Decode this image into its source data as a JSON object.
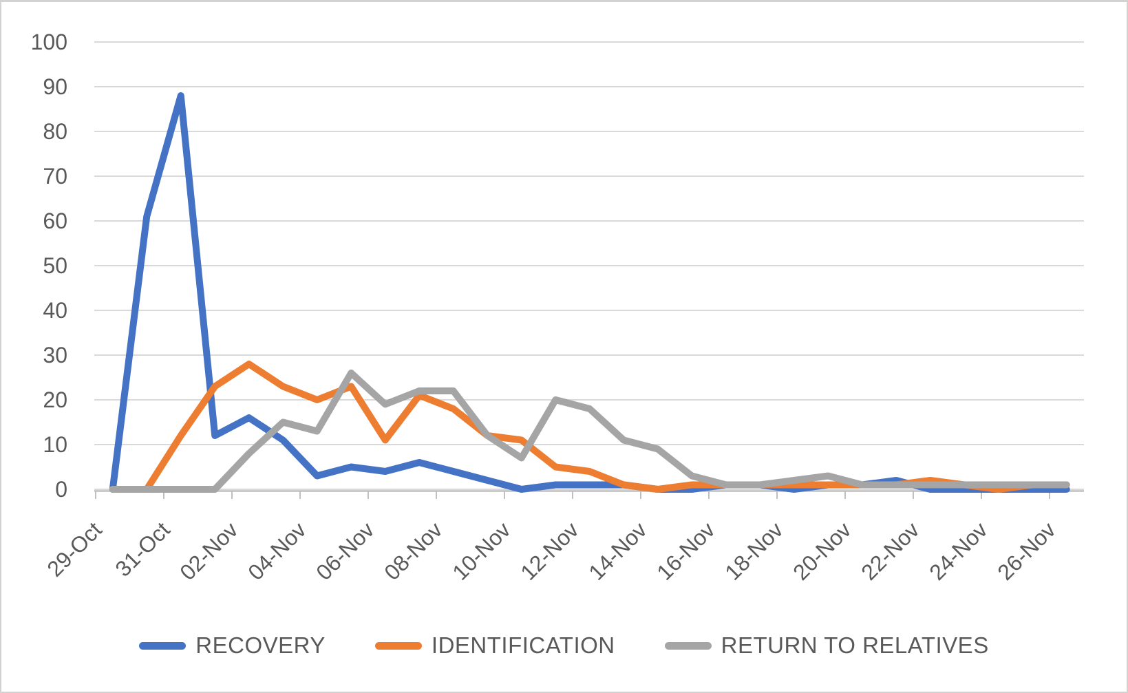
{
  "chart_data": {
    "type": "line",
    "title": "",
    "xlabel": "",
    "ylabel": "",
    "ylim": [
      0,
      100
    ],
    "y_ticks": [
      0,
      10,
      20,
      30,
      40,
      50,
      60,
      70,
      80,
      90,
      100
    ],
    "grid": "horizontal",
    "legend_position": "bottom",
    "x_label_every": 2,
    "categories": [
      "29-Oct",
      "30-Oct",
      "31-Oct",
      "01-Nov",
      "02-Nov",
      "03-Nov",
      "04-Nov",
      "05-Nov",
      "06-Nov",
      "07-Nov",
      "08-Nov",
      "09-Nov",
      "10-Nov",
      "11-Nov",
      "12-Nov",
      "13-Nov",
      "14-Nov",
      "15-Nov",
      "16-Nov",
      "17-Nov",
      "18-Nov",
      "19-Nov",
      "20-Nov",
      "21-Nov",
      "22-Nov",
      "23-Nov",
      "24-Nov",
      "25-Nov",
      "26-Nov"
    ],
    "series": [
      {
        "name": "RECOVERY",
        "color": "#4472C4",
        "values": [
          0,
          61,
          88,
          12,
          16,
          11,
          3,
          5,
          4,
          6,
          4,
          2,
          0,
          1,
          1,
          1,
          0,
          0,
          1,
          1,
          0,
          1,
          1,
          2,
          0,
          0,
          0,
          0,
          0
        ]
      },
      {
        "name": "IDENTIFICATION",
        "color": "#ED7D31",
        "values": [
          0,
          0,
          12,
          23,
          28,
          23,
          20,
          23,
          11,
          21,
          18,
          12,
          11,
          5,
          4,
          1,
          0,
          1,
          1,
          1,
          1,
          1,
          1,
          1,
          2,
          1,
          0,
          1,
          1
        ]
      },
      {
        "name": "RETURN TO RELATIVES",
        "color": "#A5A5A5",
        "values": [
          0,
          0,
          0,
          0,
          8,
          15,
          13,
          26,
          19,
          22,
          22,
          12,
          7,
          20,
          18,
          11,
          9,
          3,
          1,
          1,
          2,
          3,
          1,
          1,
          1,
          1,
          1,
          1,
          1
        ]
      }
    ],
    "style": {
      "grid_color": "#D9D9D9",
      "axis_color": "#BFBFBF",
      "text_color": "#595959"
    }
  }
}
